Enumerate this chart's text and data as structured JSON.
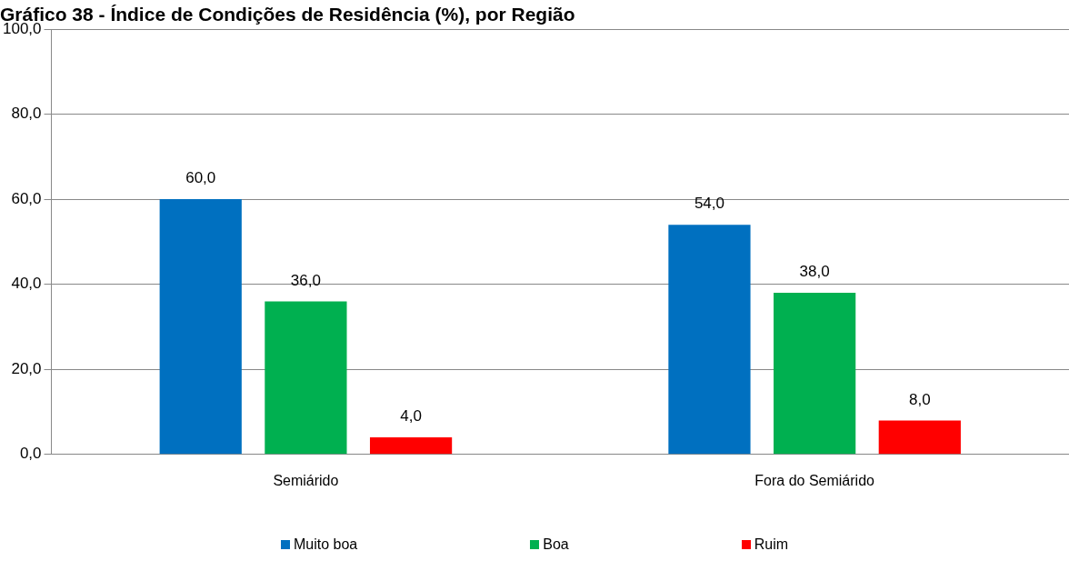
{
  "chart_data": {
    "type": "bar",
    "title": "Gráfico 38 - Índice de Condições de Residência (%), por Região",
    "categories": [
      "Semiárido",
      "Fora do Semiárido"
    ],
    "series": [
      {
        "name": "Muito boa",
        "color": "#0070c0",
        "values": [
          60.0,
          54.0
        ],
        "value_labels": [
          "60,0",
          "54,0"
        ]
      },
      {
        "name": "Boa",
        "color": "#00b050",
        "values": [
          36.0,
          38.0
        ],
        "value_labels": [
          "36,0",
          "38,0"
        ]
      },
      {
        "name": "Ruim",
        "color": "#ff0000",
        "values": [
          4.0,
          8.0
        ],
        "value_labels": [
          "4,0",
          "8,0"
        ]
      }
    ],
    "ylim": [
      0,
      100
    ],
    "yticks": [
      {
        "value": 0,
        "label": "0,0"
      },
      {
        "value": 20,
        "label": "20,0"
      },
      {
        "value": 40,
        "label": "40,0"
      },
      {
        "value": 60,
        "label": "60,0"
      },
      {
        "value": 80,
        "label": "80,0"
      },
      {
        "value": 100,
        "label": "100,0"
      }
    ],
    "grid": "y",
    "legend": "bottom"
  }
}
